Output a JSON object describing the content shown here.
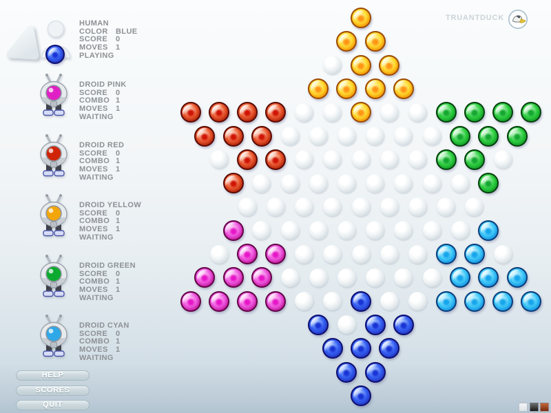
{
  "logo": {
    "text": "TRUANTDUCK"
  },
  "players": [
    {
      "name": "HUMAN",
      "stats": [
        {
          "label": "COLOR",
          "value": "BLUE"
        },
        {
          "label": "SCORE",
          "value": "0"
        },
        {
          "label": "MOVES",
          "value": "1"
        }
      ],
      "status": "PLAYING",
      "icon": "human",
      "eye_color": "#2f5ef4"
    },
    {
      "name": "DROID PINK",
      "stats": [
        {
          "label": "SCORE",
          "value": "0"
        },
        {
          "label": "COMBO",
          "value": "1"
        },
        {
          "label": "MOVES",
          "value": "1"
        }
      ],
      "status": "WAITING",
      "icon": "droid",
      "eye_color": "#e020c4"
    },
    {
      "name": "DROID RED",
      "stats": [
        {
          "label": "SCORE",
          "value": "0"
        },
        {
          "label": "COMBO",
          "value": "1"
        },
        {
          "label": "MOVES",
          "value": "1"
        }
      ],
      "status": "WAITING",
      "icon": "droid",
      "eye_color": "#d02408"
    },
    {
      "name": "DROID YELLOW",
      "stats": [
        {
          "label": "SCORE",
          "value": "0"
        },
        {
          "label": "COMBO",
          "value": "1"
        },
        {
          "label": "MOVES",
          "value": "1"
        }
      ],
      "status": "WAITING",
      "icon": "droid",
      "eye_color": "#f2a60a"
    },
    {
      "name": "DROID GREEN",
      "stats": [
        {
          "label": "SCORE",
          "value": "0"
        },
        {
          "label": "COMBO",
          "value": "1"
        },
        {
          "label": "MOVES",
          "value": "1"
        }
      ],
      "status": "WAITING",
      "icon": "droid",
      "eye_color": "#0cab2f"
    },
    {
      "name": "DROID CYAN",
      "stats": [
        {
          "label": "SCORE",
          "value": "0"
        },
        {
          "label": "COMBO",
          "value": "1"
        },
        {
          "label": "MOVES",
          "value": "1"
        }
      ],
      "status": "WAITING",
      "icon": "droid",
      "eye_color": "#2fa8e8"
    }
  ],
  "menu": {
    "buttons": [
      {
        "label": "HELP"
      },
      {
        "label": "SCORES"
      },
      {
        "label": "QUIT"
      }
    ]
  },
  "board": {
    "rows": [
      1,
      2,
      3,
      4,
      13,
      12,
      11,
      10,
      9,
      10,
      11,
      12,
      13,
      4,
      3,
      2,
      1
    ],
    "marbles": {
      "yellow": [
        [
          1,
          1
        ],
        [
          2,
          1
        ],
        [
          2,
          2
        ],
        [
          3,
          2
        ],
        [
          3,
          3
        ],
        [
          4,
          1
        ],
        [
          4,
          2
        ],
        [
          4,
          3
        ],
        [
          4,
          4
        ],
        [
          5,
          7
        ]
      ],
      "red": [
        [
          5,
          1
        ],
        [
          5,
          2
        ],
        [
          5,
          3
        ],
        [
          5,
          4
        ],
        [
          6,
          1
        ],
        [
          6,
          2
        ],
        [
          6,
          3
        ],
        [
          7,
          2
        ],
        [
          7,
          3
        ],
        [
          8,
          1
        ]
      ],
      "green": [
        [
          5,
          10
        ],
        [
          5,
          11
        ],
        [
          5,
          12
        ],
        [
          5,
          13
        ],
        [
          6,
          10
        ],
        [
          6,
          11
        ],
        [
          6,
          12
        ],
        [
          7,
          9
        ],
        [
          7,
          10
        ],
        [
          8,
          10
        ]
      ],
      "pink": [
        [
          10,
          1
        ],
        [
          11,
          2
        ],
        [
          11,
          3
        ],
        [
          12,
          1
        ],
        [
          12,
          2
        ],
        [
          12,
          3
        ],
        [
          13,
          1
        ],
        [
          13,
          2
        ],
        [
          13,
          3
        ],
        [
          13,
          4
        ]
      ],
      "cyan": [
        [
          10,
          10
        ],
        [
          11,
          9
        ],
        [
          11,
          10
        ],
        [
          12,
          10
        ],
        [
          12,
          11
        ],
        [
          12,
          12
        ],
        [
          13,
          10
        ],
        [
          13,
          11
        ],
        [
          13,
          12
        ],
        [
          13,
          13
        ]
      ],
      "blue": [
        [
          13,
          7
        ],
        [
          14,
          1
        ],
        [
          14,
          3
        ],
        [
          14,
          4
        ],
        [
          15,
          1
        ],
        [
          15,
          2
        ],
        [
          15,
          3
        ],
        [
          16,
          1
        ],
        [
          16,
          2
        ],
        [
          17,
          1
        ]
      ]
    },
    "colors": {
      "yellow": {
        "rim": "#9d4a02",
        "edge": "#ef8a00",
        "body": "#ffd92e",
        "light": "#fff6a0",
        "dot": "#ff9614"
      },
      "red": {
        "rim": "#5a0a02",
        "edge": "#a81a04",
        "body": "#ea5a30",
        "light": "#ffd9c4",
        "dot": "#d01404"
      },
      "green": {
        "rim": "#053f0d",
        "edge": "#0c9422",
        "body": "#30d042",
        "light": "#c2f7c8",
        "dot": "#15a831"
      },
      "pink": {
        "rim": "#630344",
        "edge": "#bb0e94",
        "body": "#ef5be0",
        "light": "#fcc9f5",
        "dot": "#e716c8"
      },
      "cyan": {
        "rim": "#0a3d7a",
        "edge": "#0e8ade",
        "body": "#3fc9f8",
        "light": "#ccf3ff",
        "dot": "#16a6ec"
      },
      "blue": {
        "rim": "#0e0e6e",
        "edge": "#2030b8",
        "body": "#3560f4",
        "light": "#a8c8ff",
        "dot": "#1834d6"
      }
    }
  },
  "footer": {
    "swatches": [
      {
        "name": "light",
        "top": "#f3f5f7",
        "bottom": "#dde3e7"
      },
      {
        "name": "dark",
        "top": "#6e6e6e",
        "bottom": "#191919"
      },
      {
        "name": "rust",
        "top": "#c2683c",
        "bottom": "#772a0e"
      }
    ]
  }
}
